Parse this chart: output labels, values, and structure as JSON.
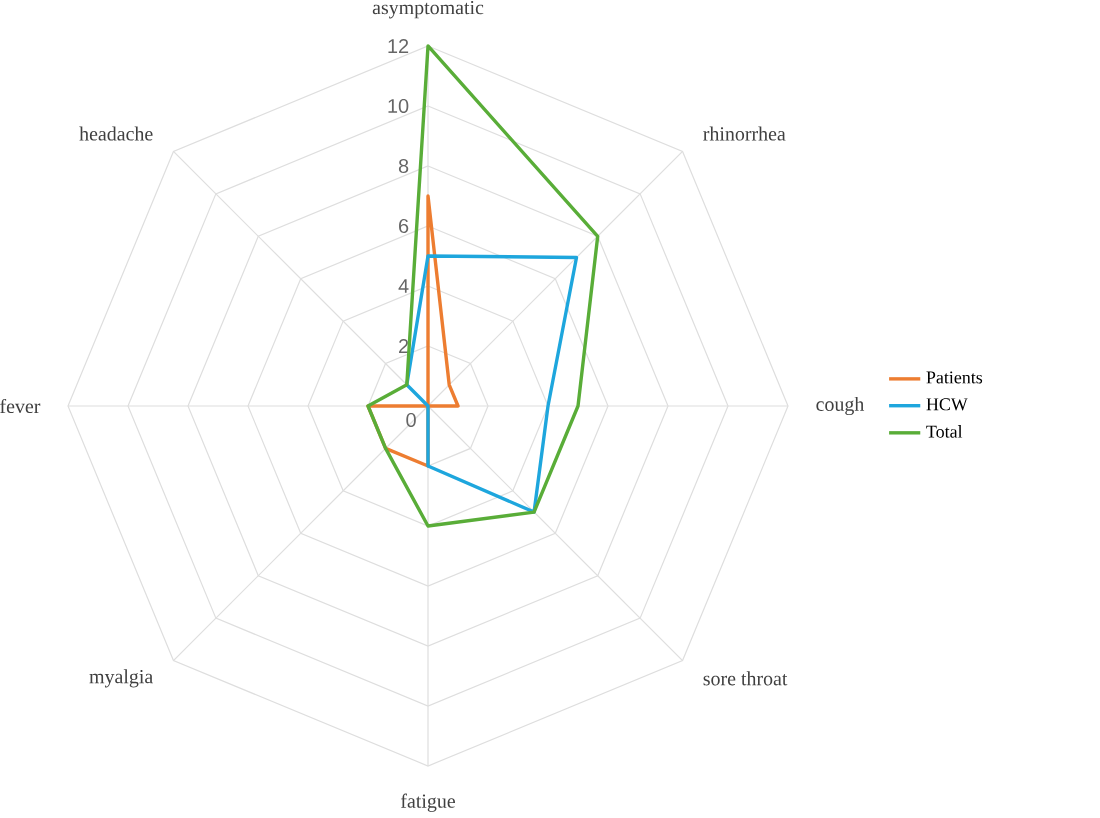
{
  "chart_data": {
    "type": "radar",
    "categories": [
      "asymptomatic",
      "rhinorrhea",
      "cough",
      "sore throat",
      "fatigue",
      "myalgia",
      "fever",
      "headache"
    ],
    "series": [
      {
        "name": "Patients",
        "color": "#ed7d31",
        "values": [
          7,
          1,
          1,
          0,
          2,
          2,
          2,
          0
        ]
      },
      {
        "name": "HCW",
        "color": "#1ea6dd",
        "values": [
          5,
          7,
          4,
          5,
          2,
          0,
          0,
          1
        ]
      },
      {
        "name": "Total",
        "color": "#59ad38",
        "values": [
          12,
          8,
          5,
          5,
          4,
          2,
          2,
          1
        ]
      }
    ],
    "ylim": [
      0,
      12
    ],
    "yticks": [
      0,
      2,
      4,
      6,
      8,
      10,
      12
    ],
    "grid": true,
    "legend": "right",
    "marker": "none",
    "line_style": "solid"
  }
}
